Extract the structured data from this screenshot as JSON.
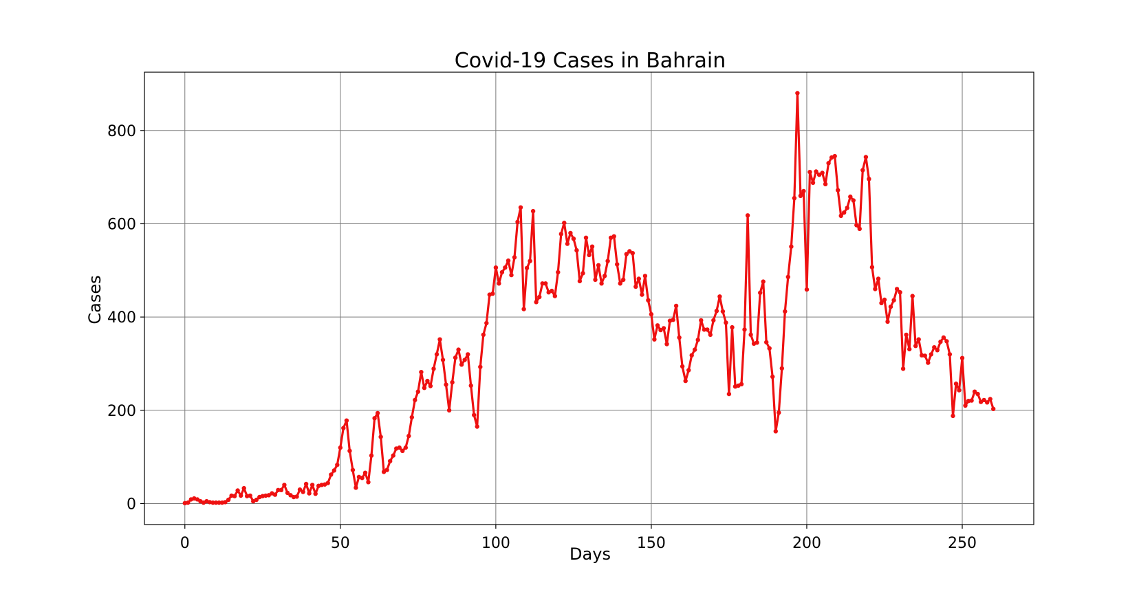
{
  "chart_data": {
    "type": "line",
    "title": "Covid-19 Cases in Bahrain",
    "xlabel": "Days",
    "ylabel": "Cases",
    "xlim": [
      -13,
      273
    ],
    "ylim": [
      -45,
      925
    ],
    "xticks": [
      0,
      50,
      100,
      150,
      200,
      250
    ],
    "yticks": [
      0,
      200,
      400,
      600,
      800
    ],
    "grid": true,
    "series": [
      {
        "color": "#ee1111",
        "marker": "circle",
        "x": [
          0,
          1,
          2,
          3,
          4,
          5,
          6,
          7,
          8,
          9,
          10,
          11,
          12,
          13,
          14,
          15,
          16,
          17,
          18,
          19,
          20,
          21,
          22,
          23,
          24,
          25,
          26,
          27,
          28,
          29,
          30,
          31,
          32,
          33,
          34,
          35,
          36,
          37,
          38,
          39,
          40,
          41,
          42,
          43,
          44,
          45,
          46,
          47,
          48,
          49,
          50,
          51,
          52,
          53,
          54,
          55,
          56,
          57,
          58,
          59,
          60,
          61,
          62,
          63,
          64,
          65,
          66,
          67,
          68,
          69,
          70,
          71,
          72,
          73,
          74,
          75,
          76,
          77,
          78,
          79,
          80,
          81,
          82,
          83,
          84,
          85,
          86,
          87,
          88,
          89,
          90,
          91,
          92,
          93,
          94,
          95,
          96,
          97,
          98,
          99,
          100,
          101,
          102,
          103,
          104,
          105,
          106,
          107,
          108,
          109,
          110,
          111,
          112,
          113,
          114,
          115,
          116,
          117,
          118,
          119,
          120,
          121,
          122,
          123,
          124,
          125,
          126,
          127,
          128,
          129,
          130,
          131,
          132,
          133,
          134,
          135,
          136,
          137,
          138,
          139,
          140,
          141,
          142,
          143,
          144,
          145,
          146,
          147,
          148,
          149,
          150,
          151,
          152,
          153,
          154,
          155,
          156,
          157,
          158,
          159,
          160,
          161,
          162,
          163,
          164,
          165,
          166,
          167,
          168,
          169,
          170,
          171,
          172,
          173,
          174,
          175,
          176,
          177,
          178,
          179,
          180,
          181,
          182,
          183,
          184,
          185,
          186,
          187,
          188,
          189,
          190,
          191,
          192,
          193,
          194,
          195,
          196,
          197,
          198,
          199,
          200,
          201,
          202,
          203,
          204,
          205,
          206,
          207,
          208,
          209,
          210,
          211,
          212,
          213,
          214,
          215,
          216,
          217,
          218,
          219,
          220,
          221,
          222,
          223,
          224,
          225,
          226,
          227,
          228,
          229,
          230,
          231,
          232,
          233,
          234,
          235,
          236,
          237,
          238,
          239,
          240,
          241,
          242,
          243,
          244,
          245,
          246,
          247,
          248,
          249,
          250,
          251,
          252,
          253,
          254,
          255,
          256,
          257,
          258,
          259,
          260
        ],
        "y": [
          1,
          2,
          9,
          11,
          9,
          5,
          2,
          5,
          3,
          2,
          2,
          2,
          2,
          3,
          8,
          17,
          16,
          28,
          17,
          33,
          16,
          17,
          5,
          8,
          14,
          16,
          17,
          18,
          22,
          19,
          29,
          29,
          40,
          23,
          18,
          14,
          15,
          30,
          25,
          42,
          22,
          40,
          21,
          38,
          40,
          41,
          44,
          62,
          71,
          83,
          120,
          162,
          178,
          113,
          72,
          34,
          57,
          55,
          66,
          46,
          103,
          183,
          194,
          143,
          68,
          72,
          91,
          103,
          118,
          120,
          113,
          120,
          145,
          185,
          222,
          240,
          282,
          248,
          263,
          252,
          289,
          320,
          352,
          308,
          255,
          200,
          260,
          313,
          330,
          298,
          308,
          320,
          253,
          190,
          165,
          293,
          362,
          387,
          448,
          450,
          506,
          472,
          496,
          506,
          521,
          490,
          528,
          604,
          635,
          417,
          505,
          520,
          627,
          432,
          443,
          472,
          472,
          453,
          456,
          445,
          496,
          578,
          602,
          557,
          580,
          568,
          543,
          477,
          494,
          570,
          533,
          551,
          480,
          511,
          472,
          488,
          520,
          570,
          573,
          513,
          472,
          480,
          535,
          541,
          537,
          465,
          482,
          448,
          488,
          436,
          406,
          352,
          382,
          372,
          376,
          342,
          392,
          394,
          424,
          356,
          294,
          263,
          286,
          318,
          330,
          351,
          393,
          373,
          373,
          362,
          393,
          413,
          444,
          412,
          388,
          235,
          378,
          251,
          253,
          256,
          373,
          618,
          362,
          343,
          345,
          452,
          476,
          346,
          333,
          272,
          155,
          195,
          290,
          412,
          486,
          551,
          655,
          880,
          660,
          670,
          459,
          711,
          688,
          712,
          705,
          709,
          685,
          730,
          742,
          745,
          672,
          617,
          624,
          634,
          658,
          650,
          597,
          589,
          715,
          743,
          696,
          507,
          460,
          482,
          430,
          437,
          390,
          422,
          436,
          460,
          453,
          289,
          362,
          331,
          445,
          338,
          352,
          318,
          317,
          302,
          320,
          335,
          329,
          347,
          356,
          348,
          320,
          188,
          257,
          243,
          312,
          210,
          220,
          221,
          240,
          235,
          218,
          222,
          217,
          224,
          203
        ]
      }
    ]
  }
}
